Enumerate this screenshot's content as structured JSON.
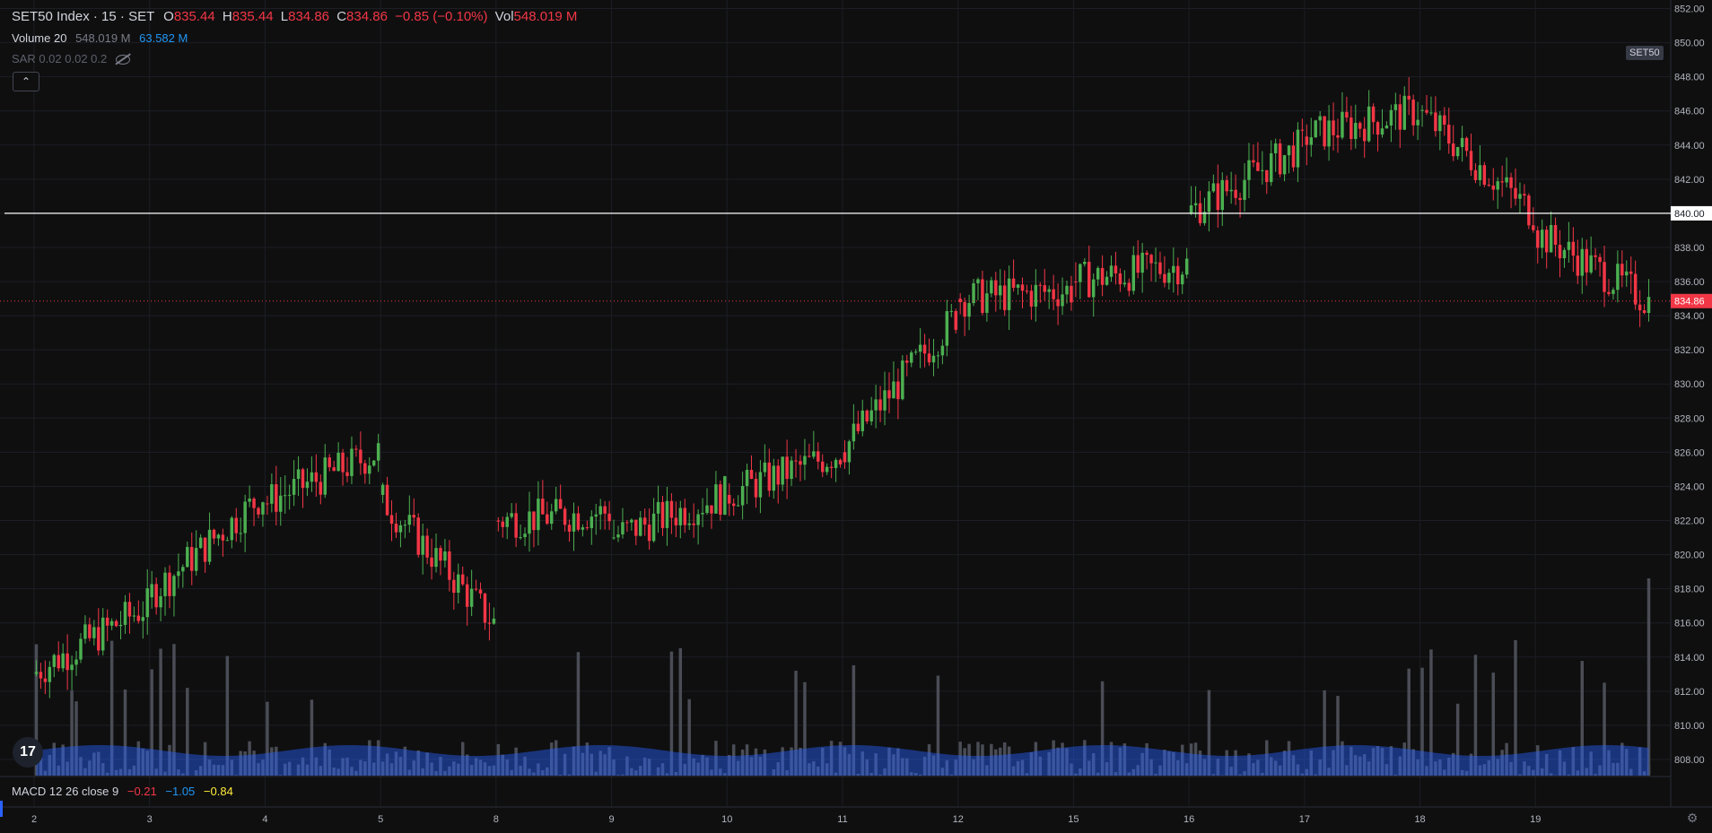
{
  "header": {
    "symbol": "SET50 Index · 15 · SET",
    "ohlc": {
      "o_label": "O",
      "o": "835.44",
      "h_label": "H",
      "h": "835.44",
      "l_label": "L",
      "l": "834.86",
      "c_label": "C",
      "c": "834.86",
      "change": "−0.85 (−0.10%)",
      "vol_label": "Vol",
      "vol": "548.019 M"
    }
  },
  "indicators": {
    "volume": {
      "label": "Volume 20",
      "value": "548.019 M",
      "ma": "63.582 M"
    },
    "sar": {
      "label": "SAR 0.02 0.02 0.2",
      "icon": "eye-off-icon"
    },
    "macd": {
      "label": "MACD 12 26 close 9",
      "macd": "−0.21",
      "signal": "−1.05",
      "hist": "−0.84"
    }
  },
  "badges": {
    "symbol_short": "SET50",
    "horizontal_line_price": "840.00",
    "last_price": "834.86"
  },
  "colors": {
    "up": "#26a69a",
    "up_candle": "#4caf50",
    "down": "#f23645",
    "volume": "#4a4d55",
    "volume_ma": "#2962ff",
    "line": "#ffffff"
  },
  "chart_data": {
    "type": "candlestick",
    "interval": "15",
    "y_ticks": [
      "852.00",
      "850.00",
      "848.00",
      "846.00",
      "844.00",
      "842.00",
      "840.00",
      "838.00",
      "836.00",
      "834.00",
      "832.00",
      "830.00",
      "828.00",
      "826.00",
      "824.00",
      "822.00",
      "820.00",
      "818.00",
      "816.00",
      "814.00",
      "812.00",
      "810.00",
      "808.00"
    ],
    "ylim": [
      807,
      852.5
    ],
    "x_ticks": [
      "2",
      "3",
      "4",
      "5",
      "8",
      "9",
      "10",
      "11",
      "12",
      "15",
      "16",
      "17",
      "18",
      "19"
    ],
    "horizontal_line": 840.0,
    "last_price": 834.86,
    "day_closes": [
      {
        "day": "2",
        "open": 813.0,
        "close": 817.0
      },
      {
        "day": "3",
        "open": 817.5,
        "close": 823.5
      },
      {
        "day": "4",
        "open": 823.0,
        "close": 826.0
      },
      {
        "day": "5",
        "open": 823.5,
        "close": 816.0
      },
      {
        "day": "8",
        "open": 822.0,
        "close": 822.5
      },
      {
        "day": "9",
        "open": 821.0,
        "close": 823.5
      },
      {
        "day": "10",
        "open": 823.5,
        "close": 826.0
      },
      {
        "day": "11",
        "open": 826.0,
        "close": 834.0
      },
      {
        "day": "12",
        "open": 835.0,
        "close": 835.5
      },
      {
        "day": "15",
        "open": 836.0,
        "close": 837.0
      },
      {
        "day": "16",
        "open": 840.0,
        "close": 844.0
      },
      {
        "day": "17",
        "open": 844.5,
        "close": 846.0
      },
      {
        "day": "18",
        "open": 846.0,
        "close": 840.0
      },
      {
        "day": "19",
        "open": 839.0,
        "close": 834.86
      }
    ]
  }
}
